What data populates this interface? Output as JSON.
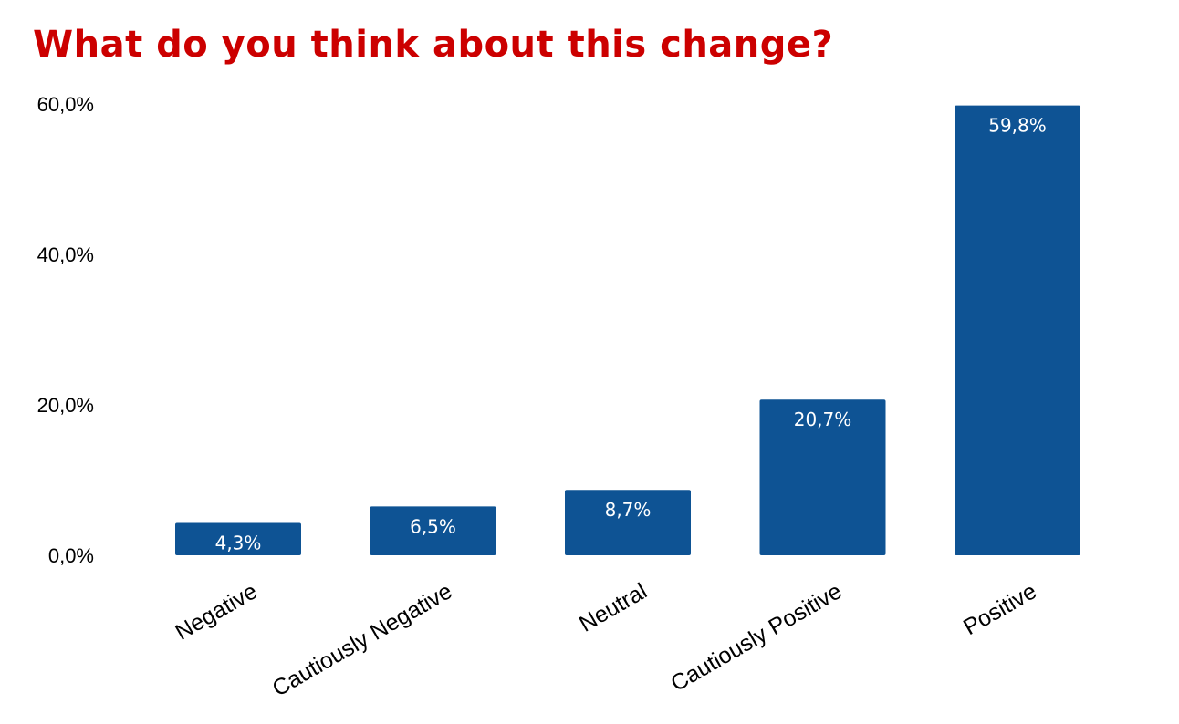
{
  "chart_data": {
    "type": "bar",
    "title": "What do you think about this change?",
    "categories": [
      "Negative",
      "Cautiously Negative",
      "Neutral",
      "Cautiously Positive",
      "Positive"
    ],
    "values": [
      4.3,
      6.5,
      8.7,
      20.7,
      59.8
    ],
    "data_labels": [
      "4,3%",
      "6,5%",
      "8,7%",
      "20,7%",
      "59,8%"
    ],
    "y_ticks": [
      0,
      20,
      40,
      60
    ],
    "y_tick_labels": [
      "0,0%",
      "20,0%",
      "40,0%",
      "60,0%"
    ],
    "ylim": [
      0,
      60
    ],
    "xlabel": "",
    "ylabel": "",
    "grid": false,
    "legend": "none",
    "bar_color": "#0e5394",
    "title_color": "#cc0000"
  }
}
